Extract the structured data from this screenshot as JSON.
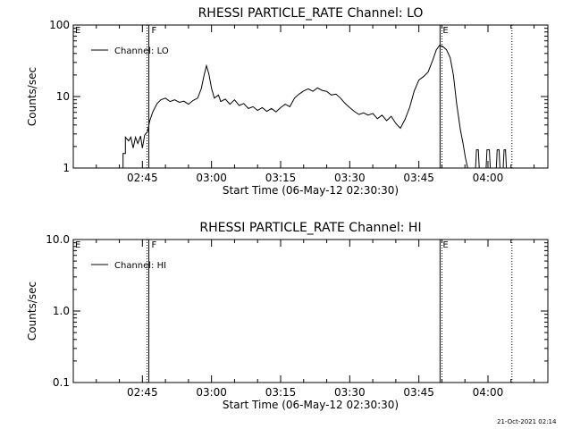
{
  "footer": {
    "date": "21-Oct-2021 02:14"
  },
  "chart_data": [
    {
      "type": "line",
      "title": "RHESSI PARTICLE_RATE Channel: LO",
      "xlabel": "Start Time (06-May-12 02:30:30)",
      "ylabel": "Counts/sec",
      "yscale": "log",
      "ylim": [
        1,
        100
      ],
      "xlim_min": [
        0,
        103
      ],
      "x_ticks": [
        15,
        30,
        45,
        60,
        75,
        90
      ],
      "x_ticklabels": [
        "02:45",
        "03:00",
        "03:15",
        "03:30",
        "03:45",
        "04:00"
      ],
      "y_ticks": [
        1,
        10,
        100
      ],
      "y_ticklabels": [
        "1",
        "10",
        "100"
      ],
      "markers": [
        {
          "label": "F",
          "x": 16.4,
          "style": "solid",
          "labelled": true
        },
        {
          "label": "F",
          "x": 16.0,
          "style": "dotted",
          "labelled": false
        },
        {
          "label": "E",
          "x": 79.6,
          "style": "solid",
          "labelled": true
        },
        {
          "label": "E",
          "x": 80.0,
          "style": "dotted",
          "labelled": false
        },
        {
          "label": "",
          "x": 95.2,
          "style": "dotted",
          "labelled": false
        }
      ],
      "corner_label": "E",
      "legend": {
        "position": "top-left",
        "entries": [
          "Channel: LO"
        ]
      },
      "series": [
        {
          "name": "Channel: LO",
          "points": [
            [
              10.8,
              1
            ],
            [
              10.8,
              1.6
            ],
            [
              11.3,
              1.6
            ],
            [
              11.3,
              2.7
            ],
            [
              12.0,
              2.4
            ],
            [
              12.5,
              2.7
            ],
            [
              13.0,
              1.9
            ],
            [
              13.5,
              2.7
            ],
            [
              14.0,
              2.2
            ],
            [
              14.6,
              2.8
            ],
            [
              15.0,
              1.9
            ],
            [
              15.5,
              2.9
            ],
            [
              16.1,
              3.2
            ],
            [
              16.6,
              4.6
            ],
            [
              17.3,
              6.2
            ],
            [
              18.2,
              8.0
            ],
            [
              19.0,
              9.0
            ],
            [
              20.0,
              9.5
            ],
            [
              21.0,
              8.5
            ],
            [
              22.0,
              9.0
            ],
            [
              23.0,
              8.3
            ],
            [
              24.0,
              8.6
            ],
            [
              25.0,
              7.8
            ],
            [
              26.0,
              8.8
            ],
            [
              27.0,
              9.5
            ],
            [
              27.8,
              13
            ],
            [
              28.4,
              20
            ],
            [
              28.9,
              27
            ],
            [
              29.4,
              21
            ],
            [
              30.0,
              13
            ],
            [
              30.6,
              9.5
            ],
            [
              31.5,
              10.5
            ],
            [
              32.0,
              8.5
            ],
            [
              33.0,
              9.2
            ],
            [
              34.0,
              7.8
            ],
            [
              35.0,
              9.0
            ],
            [
              36.0,
              7.5
            ],
            [
              37.0,
              8.0
            ],
            [
              38.0,
              6.8
            ],
            [
              39.0,
              7.2
            ],
            [
              40.0,
              6.4
            ],
            [
              41.0,
              7.0
            ],
            [
              42.0,
              6.2
            ],
            [
              43.0,
              6.8
            ],
            [
              44.0,
              6.1
            ],
            [
              45.0,
              7.0
            ],
            [
              46.0,
              7.8
            ],
            [
              47.0,
              7.2
            ],
            [
              48.0,
              9.5
            ],
            [
              49.0,
              10.8
            ],
            [
              50.0,
              12.0
            ],
            [
              51.0,
              12.8
            ],
            [
              52.0,
              11.8
            ],
            [
              53.0,
              13.2
            ],
            [
              54.0,
              12.2
            ],
            [
              55.0,
              11.8
            ],
            [
              56.0,
              10.5
            ],
            [
              57.0,
              10.8
            ],
            [
              58.0,
              9.5
            ],
            [
              59.0,
              8.0
            ],
            [
              60.0,
              7.0
            ],
            [
              61.0,
              6.2
            ],
            [
              62.0,
              5.6
            ],
            [
              63.0,
              5.9
            ],
            [
              64.0,
              5.5
            ],
            [
              65.0,
              5.8
            ],
            [
              66.0,
              4.9
            ],
            [
              67.0,
              5.5
            ],
            [
              68.0,
              4.6
            ],
            [
              69.0,
              5.3
            ],
            [
              70.0,
              4.2
            ],
            [
              71.0,
              3.6
            ],
            [
              72.0,
              4.8
            ],
            [
              73.0,
              7.0
            ],
            [
              74.0,
              12.0
            ],
            [
              75.0,
              17.0
            ],
            [
              76.0,
              19.0
            ],
            [
              77.0,
              22.0
            ],
            [
              78.0,
              32.0
            ],
            [
              78.8,
              45.0
            ],
            [
              79.5,
              52.0
            ],
            [
              80.2,
              50.0
            ],
            [
              81.0,
              45.0
            ],
            [
              81.8,
              35.0
            ],
            [
              82.5,
              20.0
            ],
            [
              83.2,
              8.0
            ],
            [
              84.0,
              3.5
            ],
            [
              84.6,
              2.2
            ],
            [
              85.1,
              1.4
            ],
            [
              85.6,
              1
            ]
          ]
        },
        {
          "name": "Channel: LO tail",
          "points": [
            [
              87.3,
              1
            ],
            [
              87.5,
              1.8
            ],
            [
              87.9,
              1.8
            ],
            [
              88.1,
              1
            ],
            [
              89.6,
              1
            ],
            [
              89.8,
              1.8
            ],
            [
              90.3,
              1.8
            ],
            [
              90.5,
              1
            ],
            [
              91.8,
              1
            ],
            [
              92.0,
              1.8
            ],
            [
              92.4,
              1.8
            ],
            [
              92.6,
              1
            ],
            [
              93.3,
              1
            ],
            [
              93.5,
              1.8
            ],
            [
              93.8,
              1.8
            ],
            [
              94.0,
              1
            ]
          ]
        }
      ]
    },
    {
      "type": "line",
      "title": "RHESSI PARTICLE_RATE Channel: HI",
      "xlabel": "Start Time (06-May-12 02:30:30)",
      "ylabel": "Counts/sec",
      "yscale": "log",
      "ylim": [
        0.1,
        10
      ],
      "x_ticks": [
        15,
        30,
        45,
        60,
        75,
        90
      ],
      "x_ticklabels": [
        "02:45",
        "03:00",
        "03:15",
        "03:30",
        "03:45",
        "04:00"
      ],
      "y_ticks": [
        0.1,
        1,
        10
      ],
      "y_ticklabels": [
        "0.1",
        "1.0",
        "10.0"
      ],
      "markers": [
        {
          "label": "F",
          "x": 16.4,
          "style": "solid",
          "labelled": true
        },
        {
          "label": "F",
          "x": 16.0,
          "style": "dotted",
          "labelled": false
        },
        {
          "label": "E",
          "x": 79.6,
          "style": "solid",
          "labelled": true
        },
        {
          "label": "E",
          "x": 80.0,
          "style": "dotted",
          "labelled": false
        },
        {
          "label": "",
          "x": 95.2,
          "style": "dotted",
          "labelled": false
        }
      ],
      "corner_label": "E",
      "legend": {
        "position": "top-left",
        "entries": [
          "Channel: HI"
        ]
      },
      "series": [
        {
          "name": "Channel: HI",
          "points": []
        }
      ]
    }
  ]
}
